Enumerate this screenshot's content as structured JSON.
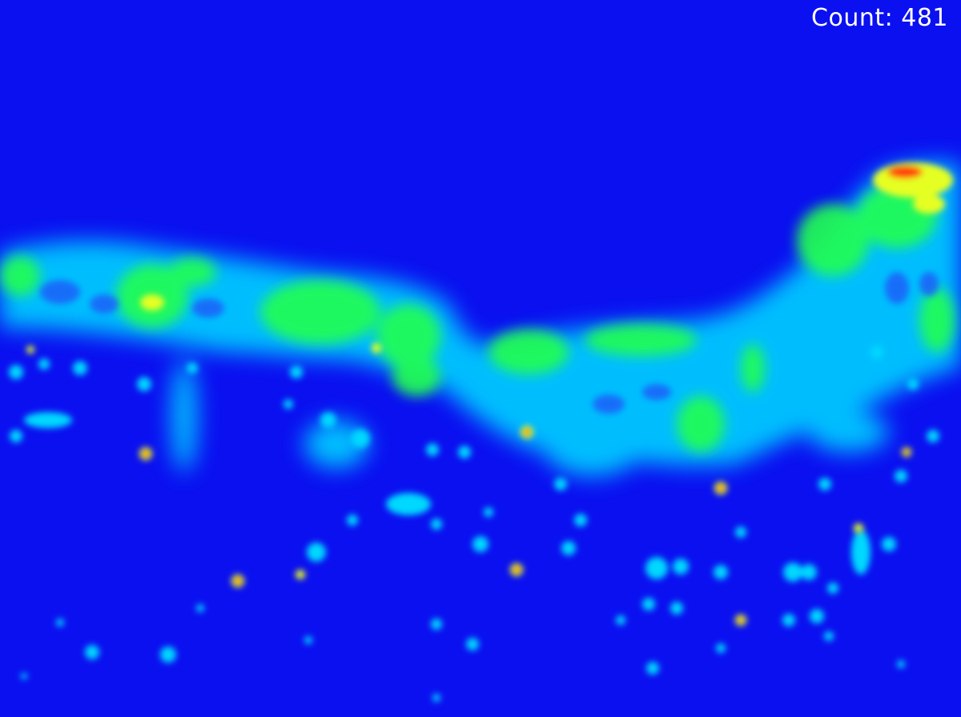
{
  "overlay": {
    "count_label": "Count:",
    "count_value": "481"
  },
  "colors": {
    "background": "#0a10f0",
    "low": "#00c8ff",
    "mid": "#20ff50",
    "high_yellow": "#e6ff20",
    "peak_red": "#ff3a10"
  }
}
